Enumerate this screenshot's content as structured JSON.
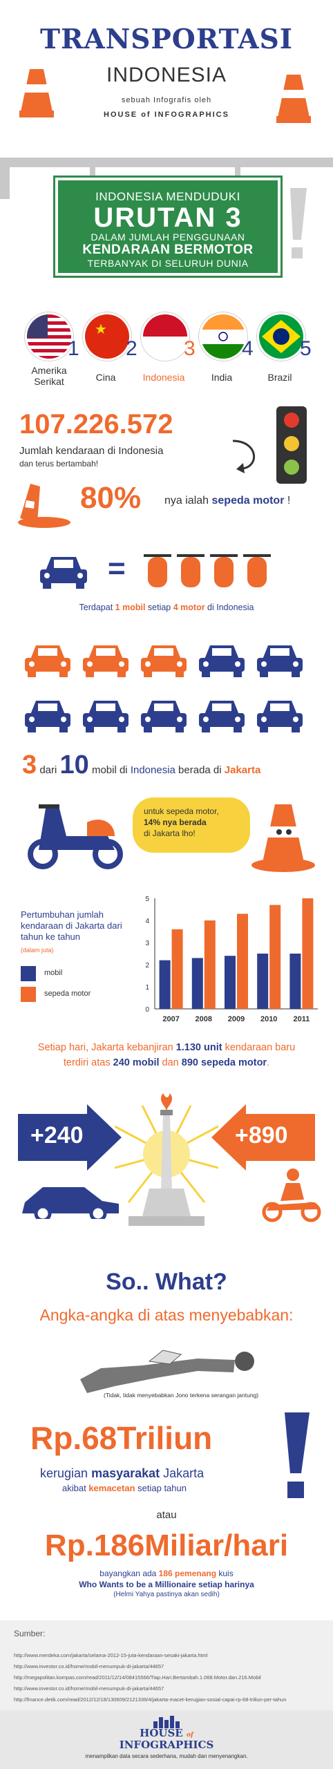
{
  "header": {
    "title": "TRANSPORTASI",
    "subtitle": "INDONESIA",
    "by_line": "sebuah Infografis oleh",
    "author": "HOUSE of INFOGRAPHICS"
  },
  "board": {
    "line1": "INDONESIA MENDUDUKI",
    "line2": "URUTAN 3",
    "line3": "DALAM JUMLAH PENGGUNAAN",
    "line4": "KENDARAAN BERMOTOR",
    "line5": "TERBANYAK DI SELURUH DUNIA"
  },
  "ranking": [
    {
      "rank": "1",
      "name": "Amerika Serikat"
    },
    {
      "rank": "2",
      "name": "Cina"
    },
    {
      "rank": "3",
      "name": "Indonesia"
    },
    {
      "rank": "4",
      "name": "India"
    },
    {
      "rank": "5",
      "name": "Brazil"
    }
  ],
  "vehicles": {
    "count": "107.226.572",
    "count_caption": "Jumlah kendaraan di Indonesia",
    "count_caption2": "dan terus bertambah!",
    "motor_pct": "80%",
    "motor_text_pre": "nya ialah ",
    "motor_text_bold": "sepeda motor",
    "motor_text_post": " !"
  },
  "ratio": {
    "eq": "=",
    "text_pre": "Terdapat ",
    "car_num": "1 mobil",
    "text_mid": " setiap ",
    "motor_num": "4 motor",
    "text_post": " di Indonesia"
  },
  "jakarta": {
    "big3": "3",
    "dari": "dari",
    "big10": "10",
    "text_mid": "mobil di ",
    "indonesia": "Indonesia",
    "text_mid2": " berada di ",
    "city": "Jakarta",
    "bubble_l1": "untuk sepeda motor,",
    "bubble_l2": "14% nya berada",
    "bubble_l3": "di Jakarta lho!"
  },
  "chart_data": {
    "type": "bar",
    "title": "Pertumbuhan jumlah kendaraan di Jakarta dari tahun ke tahun",
    "unit_note": "(dalam juta)",
    "categories": [
      "2007",
      "2008",
      "2009",
      "2010",
      "2011"
    ],
    "series": [
      {
        "name": "mobil",
        "values": [
          2.2,
          2.3,
          2.4,
          2.5,
          2.5
        ],
        "color": "#2d3e8c"
      },
      {
        "name": "sepeda motor",
        "values": [
          3.6,
          4.0,
          4.3,
          4.7,
          5.0
        ],
        "color": "#ef6a2d"
      }
    ],
    "yticks": [
      "0",
      "1",
      "2",
      "3",
      "4",
      "5"
    ],
    "ylim": [
      0,
      5
    ]
  },
  "daily": {
    "l1_pre": "Setiap hari, Jakarta kebanjiran ",
    "l1_bold": "1.130 unit",
    "l1_post": " kendaraan baru",
    "l2_pre": "terdiri atas ",
    "l2_bold1": "240 mobil",
    "l2_mid": " dan ",
    "l2_bold2": "890 sepeda motor",
    "l2_post": ".",
    "plus_cars": "+240",
    "plus_motors": "+890"
  },
  "sowhat": {
    "title": "So.. What?",
    "subtitle": "Angka-angka di atas menyebabkan:",
    "note": "(Tidak, tidak menyebabkan Jono terkena serangan jantung)",
    "loss": "Rp.68Triliun",
    "loss_l1_pre": "kerugian ",
    "loss_l1_bold": "masyarakat",
    "loss_l1_post": " Jakarta",
    "loss_l2_pre": "akibat ",
    "loss_l2_bold": "kemacetan",
    "loss_l2_post": " setiap tahun",
    "atau": "atau",
    "daily_loss": "Rp.186Miliar/hari",
    "q1_pre": "bayangkan ada ",
    "q1_bold": "186 pemenang",
    "q1_post": " kuis",
    "q2": "Who Wants to be a Millionaire setiap harinya",
    "q3": "(Helmi Yahya pastinya akan sedih)"
  },
  "sources": {
    "label": "Sumber:",
    "items": [
      "http://www.merdeka.com/jakarta/selama-2012-15-juta-kendaraan-sesaki-jakarta.html",
      "http://www.investor.co.id/home/mobil-menumpuk-di-jakarta/44657",
      "http://megapolitan.kompas.com/read/2011/12/14/08415566/Tiap.Hari.Bertambah.1.068.Motor.dan.216.Mobil",
      "http://www.investor.co.id/home/mobil-menumpuk-di-jakarta/44657",
      "http://finance.detik.com/read/2012/12/18/130609/2121339/4/jakarta-macet-kerugian-sosial-capai-rp-68-triliun-per-tahun"
    ]
  },
  "footer": {
    "logo_l1": "HOUSE",
    "logo_of": "of",
    "logo_l2": "INFOGRAPHICS",
    "tagline": "menampilkan data secara sederhana, mudah dan menyenangkan."
  }
}
